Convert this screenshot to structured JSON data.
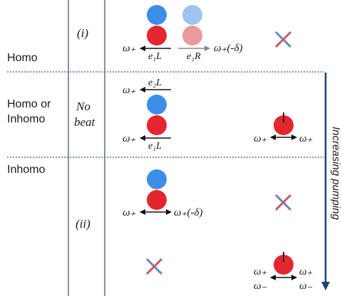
{
  "rows": {
    "homo": "Homo",
    "homo_or_inhomo_line1": "Homo or",
    "homo_or_inhomo_line2": "Inhomo",
    "inhomo": "Inhomo"
  },
  "cases": {
    "i": "(i)",
    "no_beat_line1": "No",
    "no_beat_line2": "beat",
    "ii": "(ii)"
  },
  "labels": {
    "omega_plus": "ω₊",
    "omega_minus": "ω₋",
    "omega_plus_minus_delta": "ω₊(-δ)",
    "e1L": "e₁L",
    "e1R": "e₁R",
    "e2L": "e₂L"
  },
  "side_arrow": "Increasing pumping",
  "colors": {
    "blue": "#3c8fe8",
    "red": "#e4262f",
    "blue_faded": "#9cc4ee",
    "red_faded": "#e89a9a",
    "divider": "#5d6f86",
    "arrow": "#1f3f7a",
    "cross_blue": "#6e83b8",
    "cross_red": "#c05a6e"
  }
}
